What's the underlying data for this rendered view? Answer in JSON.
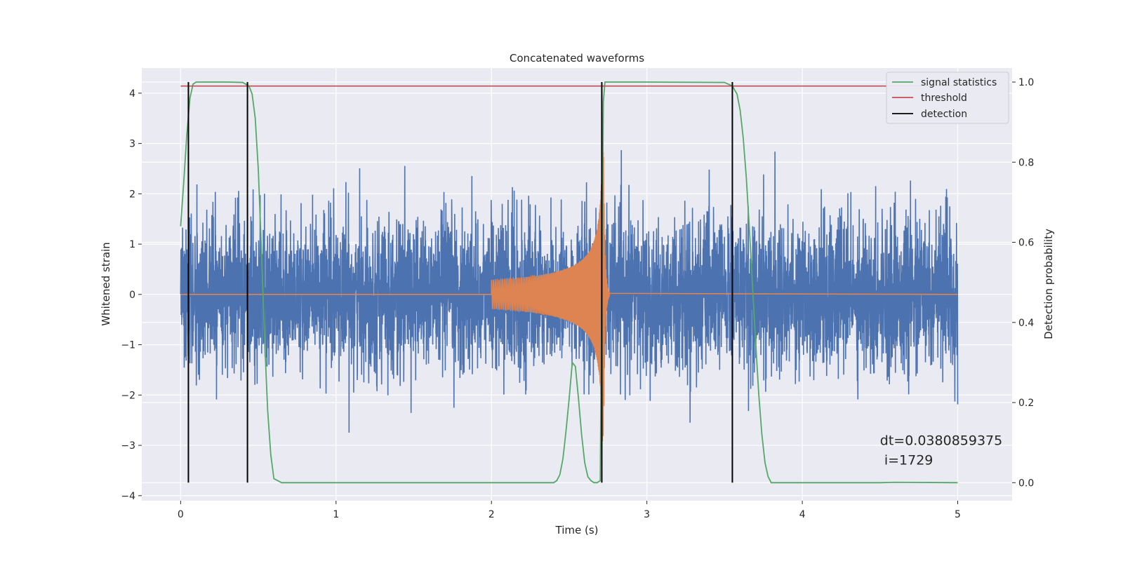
{
  "chart_data": {
    "type": "line",
    "title": "Concatenated waveforms",
    "xlabel": "Time (s)",
    "ylabel": "Whitened strain",
    "y2label": "Detection probability",
    "xlim": [
      -0.25,
      5.35
    ],
    "ylim": [
      -4.1,
      4.5
    ],
    "y2lim": [
      -0.045,
      1.035
    ],
    "xticks": [
      0,
      1,
      2,
      3,
      4,
      5
    ],
    "yticks": [
      -4,
      -3,
      -2,
      -1,
      0,
      1,
      2,
      3,
      4
    ],
    "y2ticks": [
      0.0,
      0.2,
      0.4,
      0.6,
      0.8,
      1.0
    ],
    "xtick_labels": [
      "0",
      "1",
      "2",
      "3",
      "4",
      "5"
    ],
    "ytick_labels": [
      "−4",
      "−3",
      "−2",
      "−1",
      "0",
      "1",
      "2",
      "3",
      "4"
    ],
    "y2tick_labels": [
      "0.0",
      "0.2",
      "0.4",
      "0.6",
      "0.8",
      "1.0"
    ],
    "grid": true,
    "legend_position": "top-right",
    "colors": {
      "background": "#eaeaf2",
      "grid": "#ffffff",
      "noise": "#4c72b0",
      "template": "#dd8452",
      "signal_statistics": "#55a868",
      "threshold": "#c44e52",
      "detection": "#000000"
    },
    "series": [
      {
        "name": "",
        "axis": "left",
        "kind": "noise",
        "x_start": 0,
        "x_end": 5,
        "amplitude_std": 0.75,
        "amplitude_max": 3.4
      },
      {
        "name": "",
        "axis": "left",
        "kind": "chirp",
        "x_start": 2.0,
        "x_merger": 2.72,
        "x_end": 2.76,
        "peak_amplitude": 3.1,
        "baseline": 0
      },
      {
        "name": "signal statistics",
        "axis": "right",
        "x": [
          0.0,
          0.02,
          0.04,
          0.06,
          0.08,
          0.1,
          0.2,
          0.3,
          0.4,
          0.44,
          0.46,
          0.48,
          0.5,
          0.52,
          0.54,
          0.56,
          0.58,
          0.6,
          0.65,
          1.0,
          2.0,
          2.4,
          2.42,
          2.44,
          2.46,
          2.48,
          2.5,
          2.52,
          2.54,
          2.56,
          2.58,
          2.6,
          2.62,
          2.64,
          2.66,
          2.68,
          2.7,
          2.71,
          2.72,
          2.73,
          2.74,
          2.75,
          2.8,
          3.0,
          3.5,
          3.55,
          3.58,
          3.6,
          3.62,
          3.64,
          3.66,
          3.68,
          3.7,
          3.72,
          3.74,
          3.76,
          3.78,
          3.8,
          4.0,
          4.5,
          4.6,
          5.0
        ],
        "y": [
          0.64,
          0.75,
          0.87,
          0.96,
          0.995,
          1.0,
          1.0,
          1.0,
          0.999,
          0.99,
          0.97,
          0.91,
          0.78,
          0.58,
          0.36,
          0.18,
          0.07,
          0.01,
          0.0,
          0.0,
          0.0,
          0.0,
          0.005,
          0.02,
          0.06,
          0.13,
          0.21,
          0.3,
          0.29,
          0.21,
          0.12,
          0.05,
          0.015,
          0.005,
          0.0,
          0.0,
          0.005,
          0.5,
          0.95,
          1.0,
          1.0,
          1.0,
          1.0,
          1.0,
          0.999,
          0.99,
          0.97,
          0.93,
          0.86,
          0.76,
          0.63,
          0.49,
          0.35,
          0.22,
          0.12,
          0.05,
          0.015,
          0.0,
          0.0,
          0.0,
          0.001,
          0.0
        ]
      },
      {
        "name": "threshold",
        "axis": "right",
        "x": [
          0,
          5
        ],
        "y": [
          0.99,
          0.99
        ]
      },
      {
        "name": "detection",
        "axis": "right",
        "vlines": [
          0.05,
          0.43,
          2.71,
          3.55
        ],
        "ymin": 0.0,
        "ymax": 1.0
      }
    ],
    "annotation": {
      "line1": "dt=0.0380859375",
      "line2": " i=1729",
      "x": 4.5,
      "y": -3.1
    }
  }
}
